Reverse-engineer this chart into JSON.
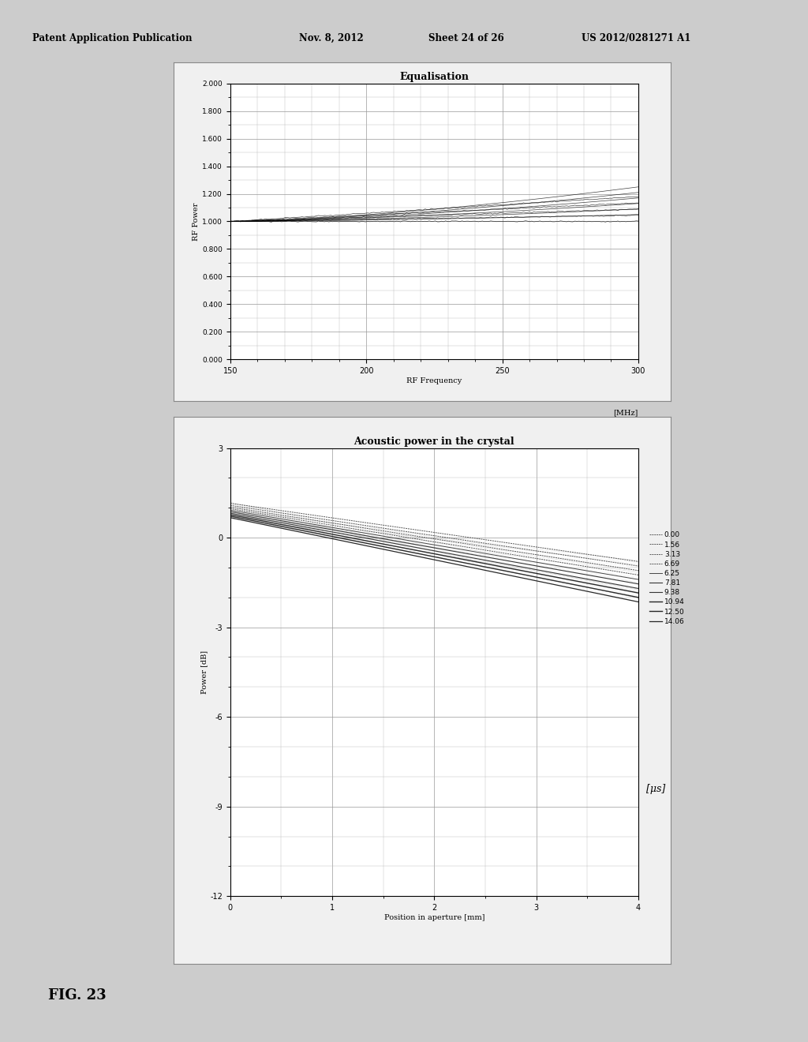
{
  "fig_width": 10.24,
  "fig_height": 13.2,
  "bg_color": "#cccccc",
  "header_text": "Patent Application Publication",
  "header_date": "Nov. 8, 2012",
  "header_sheet": "Sheet 24 of 26",
  "header_patent": "US 2012/0281271 A1",
  "fig_label": "FIG. 23",
  "chart1": {
    "title": "Equalisation",
    "xlabel": "RF Frequency",
    "xlabel2": "[MHz]",
    "ylabel": "RF Power",
    "xlim": [
      150,
      300
    ],
    "ylim": [
      0.0,
      2.0
    ],
    "xticks": [
      150,
      200,
      250,
      300
    ],
    "yticks": [
      0.0,
      0.2,
      0.4,
      0.6,
      0.8,
      1.0,
      1.2,
      1.4,
      1.6,
      1.8,
      2.0
    ],
    "ytick_labels": [
      "0.000",
      "0.200",
      "0.400",
      "0.600",
      "0.800",
      "1.000",
      "1.200",
      "1.400",
      "1.600",
      "1.800",
      "2.000"
    ]
  },
  "chart2": {
    "title": "Acoustic power in the crystal",
    "xlabel": "Position in aperture [mm]",
    "ylabel": "Power [dB]",
    "xlim": [
      0,
      4
    ],
    "ylim": [
      -12,
      3
    ],
    "xticks": [
      0,
      1,
      2,
      3,
      4
    ],
    "yticks": [
      -12,
      -9,
      -6,
      -3,
      0,
      3
    ],
    "legend_labels": [
      "0.00",
      "1.56",
      "3.13",
      "6.69",
      "6.25",
      "7.81",
      "9.38",
      "10.94",
      "12.50",
      "14.06"
    ],
    "legend_unit": "[μs]",
    "n_lines": 10,
    "start_spread": [
      1.15,
      1.08,
      1.02,
      0.97,
      0.92,
      0.87,
      0.82,
      0.77,
      0.72,
      0.67
    ],
    "end_vals": [
      -0.8,
      -0.95,
      -1.1,
      -1.25,
      -1.4,
      -1.55,
      -1.7,
      -1.85,
      -2.0,
      -2.15
    ]
  },
  "line_color": "#1a1a1a",
  "grid_color": "#666666",
  "chart_bg": "#ffffff",
  "panel_bg": "#f0f0f0"
}
